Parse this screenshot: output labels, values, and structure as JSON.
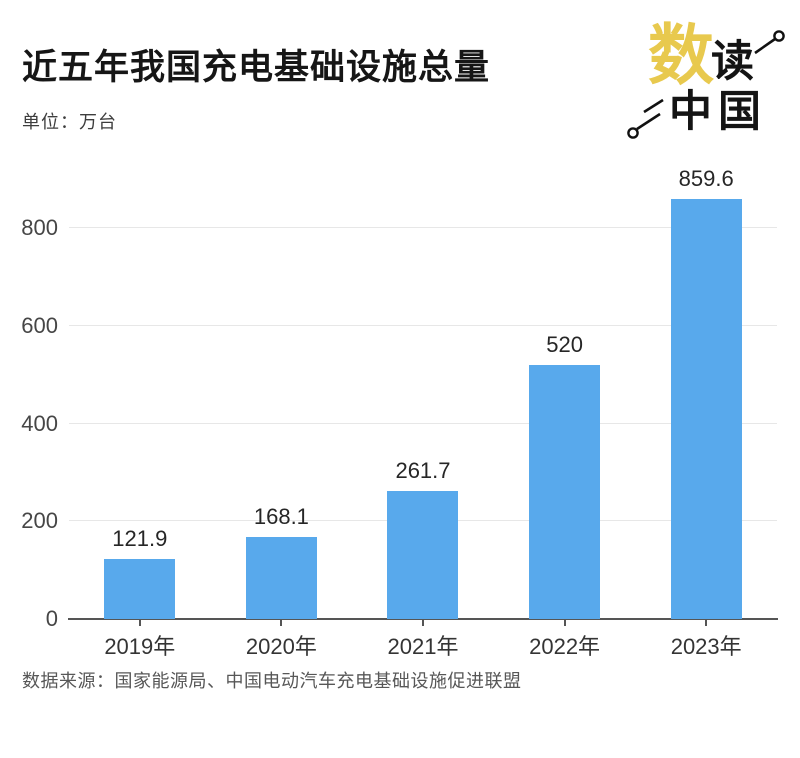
{
  "header": {
    "title": "近五年我国充电基础设施总量",
    "subtitle": "单位：万台"
  },
  "logo": {
    "chars": {
      "shu": "数",
      "du": "读",
      "zhong": "中",
      "guo": "国"
    },
    "accent_color": "#e8c94e",
    "text_color": "#141414"
  },
  "footer": {
    "source": "数据来源：国家能源局、中国电动汽车充电基础设施促进联盟"
  },
  "chart_data": {
    "type": "bar",
    "title": "近五年我国充电基础设施总量",
    "xlabel": "",
    "ylabel": "单位：万台",
    "categories": [
      "2019年",
      "2020年",
      "2021年",
      "2022年",
      "2023年"
    ],
    "values": [
      121.9,
      168.1,
      261.7,
      520,
      859.6
    ],
    "value_labels": [
      "121.9",
      "168.1",
      "261.7",
      "520",
      "859.6"
    ],
    "ylim": [
      0,
      900
    ],
    "yticks": [
      0,
      200,
      400,
      600,
      800
    ],
    "grid": true,
    "legend": "none",
    "bar_color": "#58a9ec",
    "gridline_color": "#e7e7e7",
    "axis_color": "#555555"
  }
}
